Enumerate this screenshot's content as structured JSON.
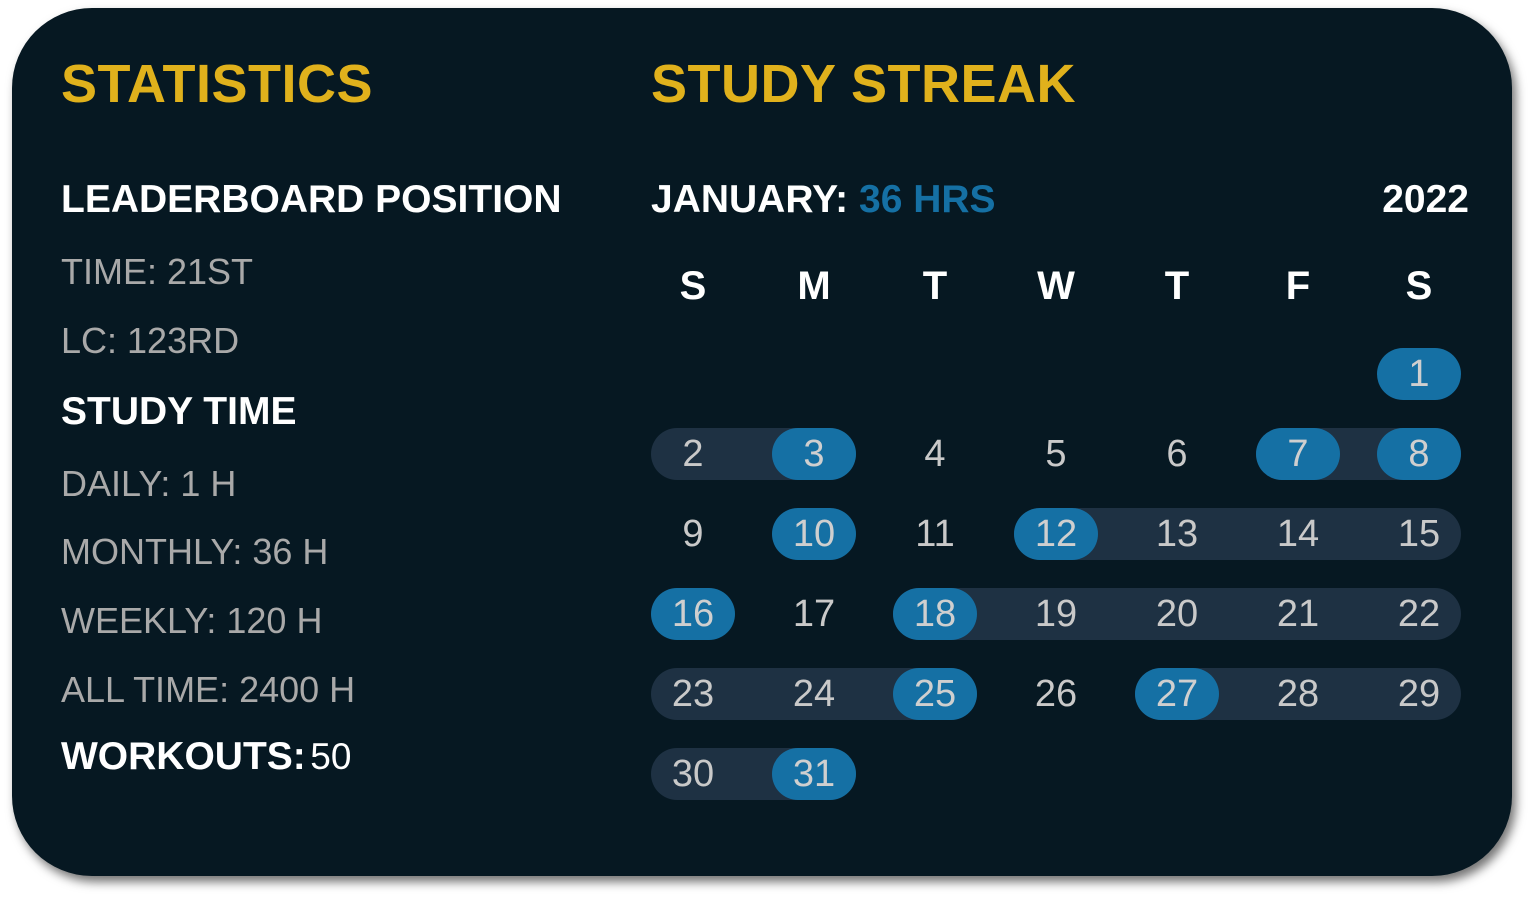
{
  "colors": {
    "background": "#061822",
    "heading": "#E0B11C",
    "accent": "#1570A4",
    "streak_band": "#1E3143",
    "text": "#FFFFFF",
    "muted_text": "#A9A9A9"
  },
  "statistics": {
    "title": "STATISTICS",
    "leaderboard": {
      "heading": "LEADERBOARD POSITION",
      "time": "TIME: 21ST",
      "lc": "LC: 123RD"
    },
    "study_time": {
      "heading": "STUDY TIME",
      "daily": "DAILY: 1 H",
      "monthly": "MONTHLY: 36 H",
      "weekly": "WEEKLY: 120 H",
      "all_time": "ALL TIME: 2400 H"
    },
    "workouts": {
      "label": "WORKOUTS:",
      "value": "50"
    }
  },
  "streak": {
    "title": "STUDY STREAK",
    "month_label": "JANUARY:",
    "month_hours": "36 HRS",
    "year": "2022",
    "weekdays": [
      "S",
      "M",
      "T",
      "W",
      "T",
      "F",
      "S"
    ],
    "first_weekday_index": 6,
    "days_in_month": 31,
    "studied_days": [
      1,
      3,
      7,
      8,
      10,
      12,
      16,
      18,
      25,
      27,
      31
    ],
    "streak_ranges": [
      [
        2,
        3
      ],
      [
        7,
        8
      ],
      [
        12,
        15
      ],
      [
        18,
        22
      ],
      [
        23,
        25
      ],
      [
        27,
        29
      ],
      [
        30,
        31
      ]
    ]
  }
}
